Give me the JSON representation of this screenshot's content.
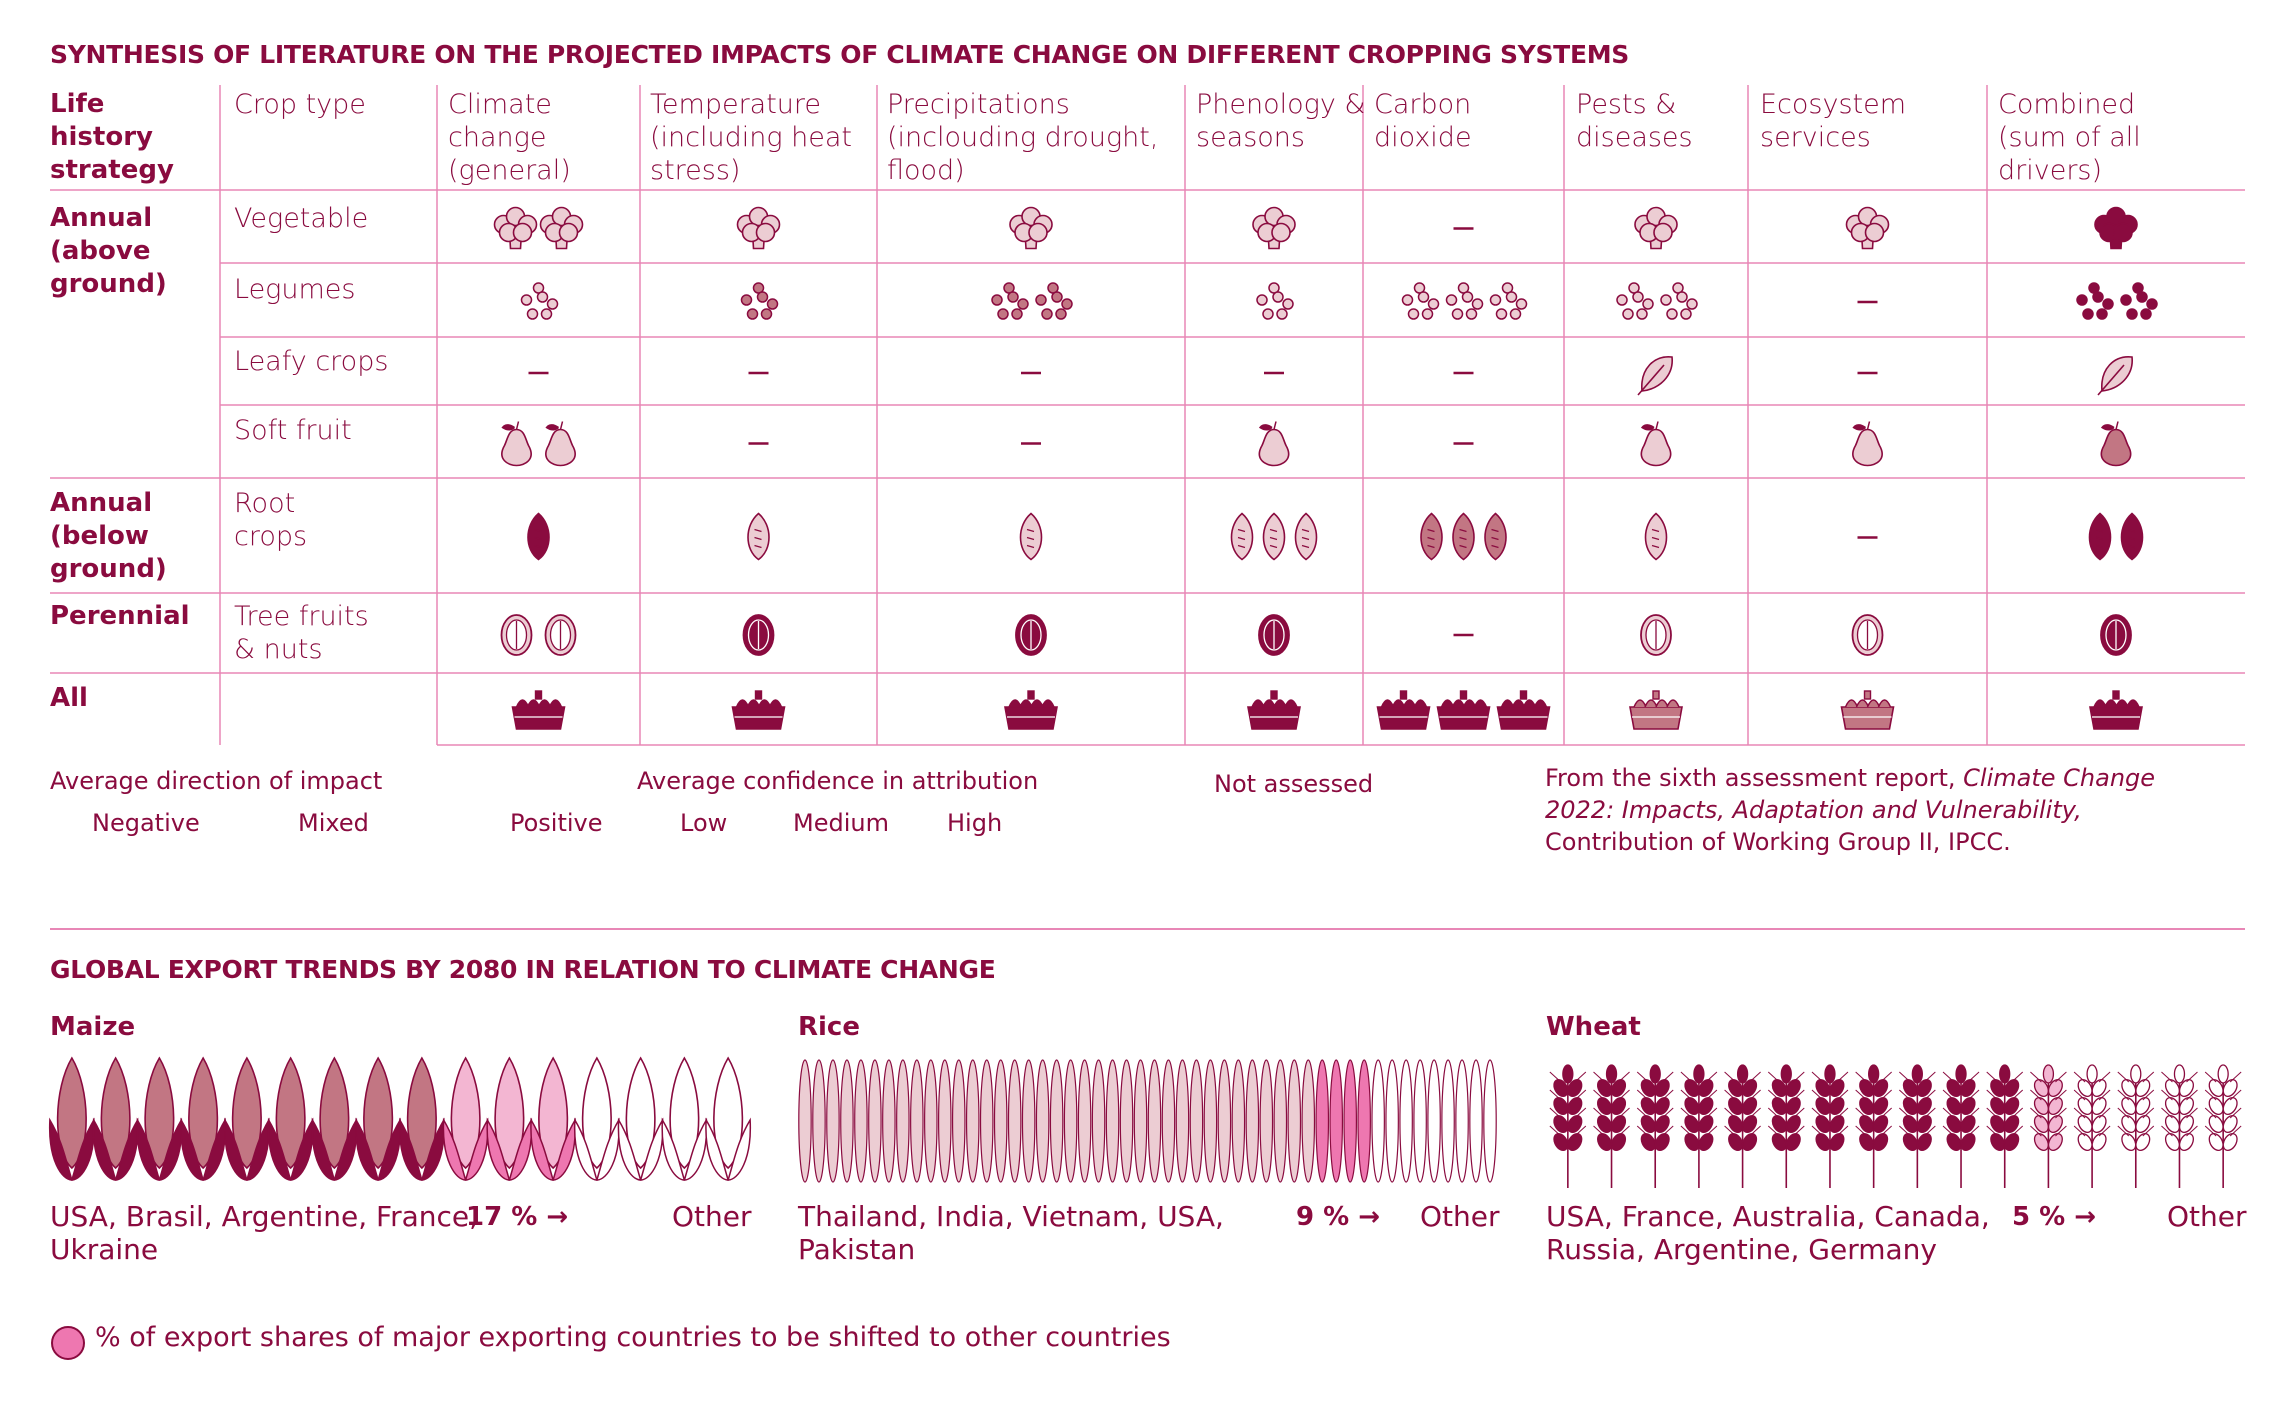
{
  "colors": {
    "dark": "#8a0b3f",
    "medium": "#c27683",
    "low": "#eccdd3",
    "line": "#e887b6",
    "shift": "#ee77b0",
    "shift_light": "#f3b6d2"
  },
  "section1": {
    "title": "SYNTHESIS OF LITERATURE ON THE PROJECTED IMPACTS OF CLIMATE CHANGE ON DIFFERENT CROPPING SYSTEMS"
  },
  "table": {
    "headers": {
      "strategy": "Life history strategy",
      "crop_type": "Crop type",
      "drivers": [
        "Climate change (general)",
        "Temperature (including heat stress)",
        "Precipitations (inclouding drought, flood)",
        "Phenology & seasons",
        "Carbon dioxide",
        "Pests & diseases",
        "Ecosystem services",
        "Combined (sum of all drivers)"
      ]
    },
    "strategies": [
      "Annual (above ground)",
      "Annual (below ground)",
      "Perennial",
      "All"
    ],
    "crop_types": [
      "Vegetable",
      "Legumes",
      "Leafy crops",
      "Soft fruit",
      "Root crops",
      "Tree fruits & nuts"
    ],
    "rows": [
      {
        "crop": "vegetable",
        "icon": "broccoli-icon",
        "cells": [
          [
            2,
            "low"
          ],
          [
            1,
            "low"
          ],
          [
            1,
            "low"
          ],
          [
            1,
            "low"
          ],
          null,
          [
            1,
            "low"
          ],
          [
            1,
            "low"
          ],
          [
            1,
            "high"
          ]
        ]
      },
      {
        "crop": "legumes",
        "icon": "beans-icon",
        "cells": [
          [
            1,
            "low"
          ],
          [
            1,
            "medium"
          ],
          [
            2,
            "medium"
          ],
          [
            1,
            "low"
          ],
          [
            3,
            "low"
          ],
          [
            2,
            "low"
          ],
          null,
          [
            2,
            "high"
          ]
        ]
      },
      {
        "crop": "leafy",
        "icon": "leaf-icon",
        "cells": [
          null,
          null,
          null,
          null,
          null,
          [
            1,
            "low"
          ],
          null,
          [
            1,
            "low"
          ]
        ]
      },
      {
        "crop": "soft-fruit",
        "icon": "pear-icon",
        "cells": [
          [
            2,
            "low"
          ],
          null,
          null,
          [
            1,
            "low"
          ],
          null,
          [
            1,
            "low"
          ],
          [
            1,
            "low"
          ],
          [
            1,
            "medium"
          ]
        ]
      },
      {
        "crop": "root",
        "icon": "sweet-potato-icon",
        "cells": [
          [
            1,
            "high"
          ],
          [
            1,
            "low"
          ],
          [
            1,
            "low"
          ],
          [
            3,
            "low"
          ],
          [
            3,
            "medium"
          ],
          [
            1,
            "low"
          ],
          null,
          [
            2,
            "high"
          ]
        ]
      },
      {
        "crop": "tree",
        "icon": "walnut-icon",
        "cells": [
          [
            2,
            "low"
          ],
          [
            1,
            "high"
          ],
          [
            1,
            "high"
          ],
          [
            1,
            "high"
          ],
          null,
          [
            1,
            "low"
          ],
          [
            1,
            "low"
          ],
          [
            1,
            "high"
          ]
        ]
      },
      {
        "crop": "all",
        "icon": "basket-icon",
        "cells": [
          [
            1,
            "high"
          ],
          [
            1,
            "high"
          ],
          [
            1,
            "high"
          ],
          [
            1,
            "high"
          ],
          [
            3,
            "high"
          ],
          [
            1,
            "medium"
          ],
          [
            1,
            "medium"
          ],
          [
            1,
            "high"
          ]
        ]
      }
    ],
    "legend": {
      "direction_title": "Average direction of impact",
      "direction_items": [
        "Negative",
        "Mixed",
        "Positive"
      ],
      "confidence_title": "Average confidence in attribution",
      "confidence_items": [
        "Low",
        "Medium",
        "High"
      ],
      "not_assessed": "Not assessed"
    },
    "source_prefix": "From the sixth assessment report, ",
    "source_italic": "Climate Change 2022: Impacts, Adaptation and Vulnerability,",
    "source_suffix": " Contribution of Working Group II, IPCC."
  },
  "section2": {
    "title": "GLOBAL EXPORT TRENDS BY 2080 IN RELATION TO CLIMATE CHANGE"
  },
  "exports": [
    {
      "name": "Maize",
      "countries": "USA, Brasil, Argentine, France, Ukraine",
      "pct_label": "17 % →",
      "other": "Other",
      "share_pct": 17
    },
    {
      "name": "Rice",
      "countries": "Thailand, India, Vietnam, USA, Pakistan",
      "pct_label": "9 % →",
      "other": "Other",
      "share_pct": 9
    },
    {
      "name": "Wheat",
      "countries": "USA, France, Australia, Canada, Russia, Argentine, Germany",
      "pct_label": "5 % →",
      "other": "Other",
      "share_pct": 5
    }
  ],
  "footnote": "% of export shares of major exporting countries to be shifted to other countries"
}
